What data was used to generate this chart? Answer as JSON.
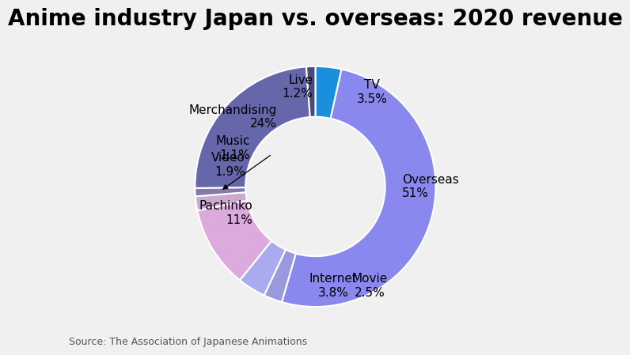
{
  "title": "Anime industry Japan vs. overseas: 2020 revenue",
  "source": "Source: The Association of Japanese Animations",
  "segments": [
    {
      "label": "TV",
      "pct": 3.5,
      "color": "#1a8fdd"
    },
    {
      "label": "Overseas",
      "pct": 51.0,
      "color": "#8888ee"
    },
    {
      "label": "Movie",
      "pct": 2.5,
      "color": "#9999dd"
    },
    {
      "label": "Internet",
      "pct": 3.8,
      "color": "#aaaaee"
    },
    {
      "label": "Pachinko",
      "pct": 11.0,
      "color": "#ddaadd"
    },
    {
      "label": "Video",
      "pct": 1.9,
      "color": "#ccaace"
    },
    {
      "label": "Music",
      "pct": 1.1,
      "color": "#8877aa"
    },
    {
      "label": "Merchandising",
      "pct": 24.0,
      "color": "#6666aa"
    },
    {
      "label": "Live",
      "pct": 1.2,
      "color": "#4a4a7a"
    }
  ],
  "background_color": "#f0f0f0",
  "title_fontsize": 20,
  "label_fontsize": 11,
  "source_fontsize": 9,
  "donut_width": 0.42,
  "startangle": 90
}
